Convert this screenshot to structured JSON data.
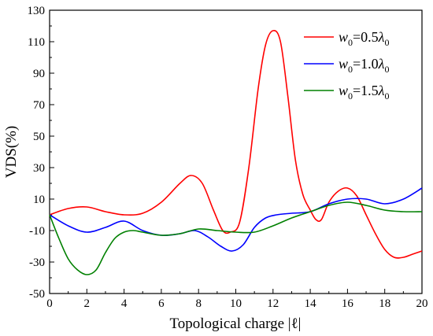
{
  "chart_data": {
    "type": "line",
    "xlabel": "Topological charge |ℓ|",
    "ylabel": "VDS(%)",
    "xlim": [
      0,
      20
    ],
    "ylim": [
      -50,
      130
    ],
    "xticks": [
      0,
      2,
      4,
      6,
      8,
      10,
      12,
      14,
      16,
      18,
      20
    ],
    "yticks": [
      -50,
      -30,
      -10,
      10,
      30,
      50,
      70,
      90,
      110,
      130
    ],
    "grid": false,
    "legend_position": "top-right",
    "series": [
      {
        "name": "w0=0.5λ0",
        "name_parts": {
          "w": "w",
          "sub1": "0",
          "mid": "=0.5",
          "lambda": "λ",
          "sub2": "0"
        },
        "color": "#ff0000",
        "x": [
          0,
          1,
          2,
          3,
          4,
          5,
          6,
          7,
          7.6,
          8.2,
          8.8,
          9.3,
          9.7,
          10.2,
          10.7,
          11.2,
          11.6,
          12,
          12.4,
          12.8,
          13.2,
          13.6,
          14,
          14.3,
          14.6,
          15,
          15.5,
          16,
          16.5,
          17,
          17.5,
          18,
          18.5,
          19,
          19.5,
          20
        ],
        "y": [
          0,
          4,
          5,
          2,
          0,
          1,
          8,
          20,
          25,
          20,
          3,
          -10,
          -11,
          -5,
          30,
          80,
          108,
          117,
          110,
          75,
          35,
          13,
          3,
          -3,
          -3,
          8,
          15,
          17,
          12,
          0,
          -12,
          -22,
          -27,
          -27,
          -25,
          -23
        ]
      },
      {
        "name": "w0=1.0λ0",
        "name_parts": {
          "w": "w",
          "sub1": "0",
          "mid": "=1.0",
          "lambda": "λ",
          "sub2": "0"
        },
        "color": "#0000ff",
        "x": [
          0,
          1,
          2,
          3,
          4,
          5,
          6,
          7,
          7.8,
          8.5,
          9.2,
          9.8,
          10.4,
          11,
          11.6,
          12.2,
          13,
          14,
          15,
          16,
          17,
          18,
          19,
          20
        ],
        "y": [
          0,
          -7,
          -11,
          -8,
          -4,
          -10,
          -13,
          -12,
          -10,
          -14,
          -20,
          -23,
          -19,
          -8,
          -2,
          0,
          1,
          2,
          7,
          10,
          10,
          7,
          10,
          17
        ]
      },
      {
        "name": "w0=1.5λ0",
        "name_parts": {
          "w": "w",
          "sub1": "0",
          "mid": "=1.5",
          "lambda": "λ",
          "sub2": "0"
        },
        "color": "#008000",
        "x": [
          0,
          0.5,
          1,
          1.5,
          2,
          2.5,
          3,
          3.5,
          4,
          4.5,
          5,
          6,
          7,
          8,
          9,
          10,
          11,
          12,
          13,
          14,
          15,
          16,
          17,
          18,
          19,
          20
        ],
        "y": [
          0,
          -15,
          -28,
          -35,
          -38,
          -35,
          -24,
          -15,
          -11,
          -10,
          -11,
          -13,
          -12,
          -9,
          -10,
          -11,
          -11,
          -7,
          -2,
          2,
          6,
          8,
          6,
          3,
          2,
          2
        ]
      }
    ]
  }
}
